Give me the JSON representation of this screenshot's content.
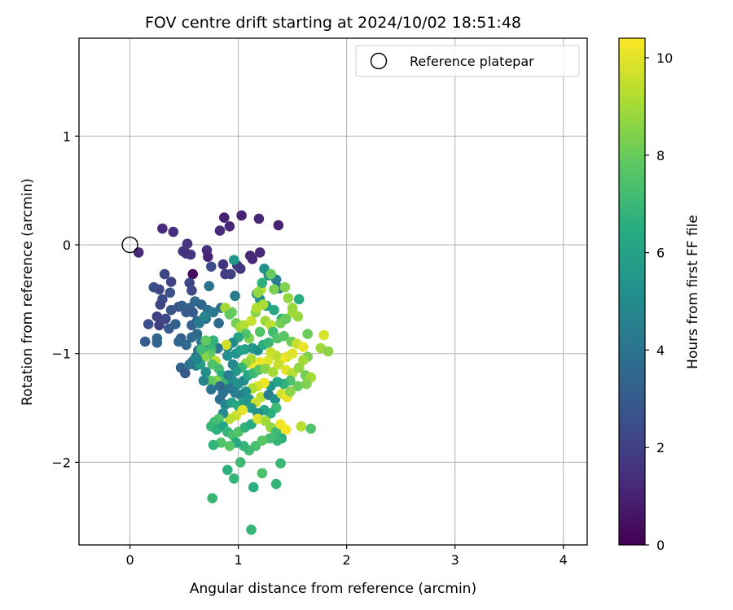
{
  "chart_data": {
    "type": "scatter",
    "title": "FOV centre drift starting at 2024/10/02 18:51:48",
    "xlabel": "Angular distance from reference (arcmin)",
    "ylabel": "Rotation from reference (arcmin)",
    "xlim": [
      -0.47,
      4.22
    ],
    "ylim": [
      -2.76,
      1.9
    ],
    "xticks": [
      0,
      1,
      2,
      3,
      4
    ],
    "yticks": [
      -2,
      -1,
      0,
      1
    ],
    "grid": true,
    "legend": {
      "position": "top-right",
      "entries": [
        "Reference platepar"
      ]
    },
    "reference_point": {
      "name": "Reference platepar",
      "x": 0,
      "y": 0
    },
    "colorbar": {
      "label": "Hours from first FF file",
      "min": 0,
      "max": 10.4,
      "ticks": [
        0,
        2,
        4,
        6,
        8,
        10
      ],
      "colormap": "viridis"
    },
    "points": [
      [
        0.08,
        -0.07,
        1.2
      ],
      [
        0.3,
        0.15,
        1.3
      ],
      [
        0.4,
        0.12,
        1.4
      ],
      [
        0.58,
        -0.27,
        0.3
      ],
      [
        0.87,
        0.25,
        1.0
      ],
      [
        1.03,
        0.27,
        1.1
      ],
      [
        1.19,
        0.24,
        1.2
      ],
      [
        1.37,
        0.18,
        1.0
      ],
      [
        0.83,
        0.13,
        1.3
      ],
      [
        0.92,
        0.17,
        1.2
      ],
      [
        0.71,
        -0.05,
        1.4
      ],
      [
        0.53,
        0.01,
        1.6
      ],
      [
        0.49,
        -0.06,
        1.7
      ],
      [
        0.52,
        -0.08,
        1.5
      ],
      [
        0.56,
        -0.09,
        1.6
      ],
      [
        0.72,
        -0.11,
        1.1
      ],
      [
        1.11,
        -0.1,
        1.1
      ],
      [
        1.13,
        -0.13,
        1.2
      ],
      [
        1.2,
        -0.07,
        1.3
      ],
      [
        0.86,
        -0.18,
        1.5
      ],
      [
        0.75,
        -0.2,
        2.5
      ],
      [
        0.88,
        -0.27,
        1.9
      ],
      [
        0.93,
        -0.27,
        2.0
      ],
      [
        1.02,
        -0.22,
        1.6
      ],
      [
        0.99,
        -0.19,
        1.7
      ],
      [
        0.96,
        -0.14,
        5.5
      ],
      [
        1.24,
        -0.22,
        5.2
      ],
      [
        1.28,
        -0.28,
        4.9
      ],
      [
        1.35,
        -0.32,
        4.5
      ],
      [
        1.38,
        -0.4,
        4.1
      ],
      [
        0.32,
        -0.27,
        2.2
      ],
      [
        0.22,
        -0.39,
        2.5
      ],
      [
        0.27,
        -0.41,
        2.3
      ],
      [
        0.38,
        -0.34,
        2.1
      ],
      [
        0.37,
        -0.44,
        2.7
      ],
      [
        0.3,
        -0.5,
        2.4
      ],
      [
        0.28,
        -0.55,
        2.2
      ],
      [
        0.45,
        -0.57,
        2.6
      ],
      [
        0.38,
        -0.6,
        2.8
      ],
      [
        0.55,
        -0.35,
        2.2
      ],
      [
        0.57,
        -0.42,
        2.3
      ],
      [
        0.6,
        -0.52,
        3.6
      ],
      [
        0.55,
        -0.58,
        3.4
      ],
      [
        0.52,
        -0.62,
        3.0
      ],
      [
        0.48,
        -0.56,
        3.1
      ],
      [
        0.66,
        -0.55,
        3.4
      ],
      [
        0.73,
        -0.38,
        3.8
      ],
      [
        0.72,
        -0.6,
        3.9
      ],
      [
        0.77,
        -0.62,
        4.2
      ],
      [
        0.7,
        -0.68,
        3.7
      ],
      [
        0.62,
        -0.7,
        3.5
      ],
      [
        0.57,
        -0.74,
        3.3
      ],
      [
        0.25,
        -0.66,
        2.0
      ],
      [
        0.27,
        -0.74,
        2.0
      ],
      [
        0.17,
        -0.73,
        2.5
      ],
      [
        0.33,
        -0.68,
        2.2
      ],
      [
        0.25,
        -0.86,
        3.5
      ],
      [
        0.25,
        -0.9,
        3.3
      ],
      [
        0.14,
        -0.89,
        3.0
      ],
      [
        0.36,
        -0.77,
        3.0
      ],
      [
        0.42,
        -0.73,
        3.2
      ],
      [
        0.47,
        -0.86,
        3.1
      ],
      [
        0.45,
        -0.89,
        3.4
      ],
      [
        0.52,
        -0.92,
        3.5
      ],
      [
        0.57,
        -0.85,
        3.6
      ],
      [
        0.62,
        -0.82,
        3.7
      ],
      [
        0.66,
        -0.89,
        4.0
      ],
      [
        0.7,
        -0.92,
        4.5
      ],
      [
        0.63,
        -0.97,
        3.9
      ],
      [
        0.61,
        -1.03,
        4.2
      ],
      [
        0.58,
        -1.07,
        4.3
      ],
      [
        0.61,
        -1.11,
        4.4
      ],
      [
        0.47,
        -1.13,
        3.3
      ],
      [
        0.51,
        -1.18,
        2.9
      ],
      [
        0.97,
        -0.47,
        4.3
      ],
      [
        1.17,
        -0.45,
        4.8
      ],
      [
        1.2,
        -0.5,
        5.1
      ],
      [
        1.26,
        -0.56,
        5.6
      ],
      [
        1.33,
        -0.6,
        6.3
      ],
      [
        1.4,
        -0.68,
        6.8
      ],
      [
        1.56,
        -0.5,
        6.5
      ],
      [
        1.55,
        -0.66,
        8.8
      ],
      [
        1.5,
        -0.62,
        9.0
      ],
      [
        1.33,
        -0.41,
        8.3
      ],
      [
        1.21,
        -0.41,
        9.3
      ],
      [
        1.18,
        -0.44,
        8.7
      ],
      [
        1.23,
        -0.55,
        9.1
      ],
      [
        1.16,
        -0.62,
        8.5
      ],
      [
        1.25,
        -0.7,
        8.9
      ],
      [
        1.3,
        -0.74,
        9.4
      ],
      [
        1.39,
        -0.72,
        8.2
      ],
      [
        1.44,
        -0.68,
        8.0
      ],
      [
        1.32,
        -0.8,
        7.2
      ],
      [
        1.2,
        -0.8,
        7.6
      ],
      [
        1.1,
        -0.86,
        8.4
      ],
      [
        0.94,
        -0.62,
        8.0
      ],
      [
        0.98,
        -0.72,
        8.2
      ],
      [
        1.02,
        -0.76,
        9.0
      ],
      [
        1.05,
        -0.74,
        9.2
      ],
      [
        1.12,
        -0.7,
        9.5
      ],
      [
        1.07,
        -0.82,
        7.5
      ],
      [
        1.0,
        -0.85,
        6.2
      ],
      [
        0.95,
        -0.9,
        5.0
      ],
      [
        0.9,
        -0.94,
        4.6
      ],
      [
        0.89,
        -0.92,
        9.7
      ],
      [
        0.81,
        -0.95,
        4.0
      ],
      [
        0.77,
        -0.88,
        6.8
      ],
      [
        0.75,
        -0.96,
        7.0
      ],
      [
        0.74,
        -1.01,
        7.8
      ],
      [
        0.69,
        -1.03,
        8.5
      ],
      [
        0.79,
        -1.07,
        9.4
      ],
      [
        0.76,
        -1.1,
        7.5
      ],
      [
        0.82,
        -1.14,
        7.2
      ],
      [
        0.85,
        -1.2,
        6.6
      ],
      [
        0.88,
        -1.25,
        7.0
      ],
      [
        0.8,
        -1.25,
        8.4
      ],
      [
        0.74,
        -1.25,
        7.8
      ],
      [
        0.9,
        -1.02,
        5.1
      ],
      [
        0.98,
        -1.0,
        5.4
      ],
      [
        1.02,
        -0.97,
        5.8
      ],
      [
        1.06,
        -0.96,
        6.0
      ],
      [
        1.13,
        -0.95,
        5.5
      ],
      [
        1.18,
        -0.97,
        5.2
      ],
      [
        1.23,
        -0.92,
        6.5
      ],
      [
        1.28,
        -0.9,
        7.0
      ],
      [
        1.36,
        -0.86,
        7.5
      ],
      [
        1.42,
        -0.84,
        7.7
      ],
      [
        1.49,
        -0.89,
        8.1
      ],
      [
        1.54,
        -0.91,
        9.6
      ],
      [
        1.6,
        -0.94,
        10.1
      ],
      [
        1.64,
        -0.82,
        8.0
      ],
      [
        1.79,
        -0.83,
        9.8
      ],
      [
        1.76,
        -0.95,
        8.9
      ],
      [
        1.83,
        -0.98,
        8.6
      ],
      [
        1.64,
        -1.03,
        8.3
      ],
      [
        1.6,
        -1.06,
        9.0
      ],
      [
        1.5,
        -1.0,
        10.0
      ],
      [
        1.45,
        -1.03,
        9.9
      ],
      [
        1.4,
        -1.05,
        10.2
      ],
      [
        1.35,
        -1.02,
        9.3
      ],
      [
        1.3,
        -0.99,
        9.6
      ],
      [
        1.27,
        -1.07,
        9.9
      ],
      [
        1.2,
        -1.08,
        10.1
      ],
      [
        1.15,
        -1.12,
        10.3
      ],
      [
        1.12,
        -1.05,
        9.1
      ],
      [
        1.07,
        -1.09,
        8.7
      ],
      [
        1.03,
        -1.13,
        6.9
      ],
      [
        0.98,
        -1.16,
        5.6
      ],
      [
        0.95,
        -1.1,
        4.8
      ],
      [
        0.91,
        -1.2,
        4.4
      ],
      [
        0.95,
        -1.25,
        5.0
      ],
      [
        1.0,
        -1.28,
        5.3
      ],
      [
        1.05,
        -1.25,
        4.9
      ],
      [
        1.09,
        -1.2,
        6.2
      ],
      [
        1.14,
        -1.18,
        7.0
      ],
      [
        1.19,
        -1.15,
        7.6
      ],
      [
        1.25,
        -1.14,
        8.5
      ],
      [
        1.32,
        -1.17,
        9.0
      ],
      [
        1.37,
        -1.1,
        9.5
      ],
      [
        1.44,
        -1.15,
        10.0
      ],
      [
        1.5,
        -1.18,
        9.3
      ],
      [
        1.56,
        -1.13,
        8.7
      ],
      [
        1.62,
        -1.2,
        8.2
      ],
      [
        1.67,
        -1.22,
        9.0
      ],
      [
        1.63,
        -1.28,
        8.4
      ],
      [
        1.55,
        -1.3,
        8.0
      ],
      [
        1.48,
        -1.25,
        7.4
      ],
      [
        1.42,
        -1.28,
        6.8
      ],
      [
        1.36,
        -1.26,
        6.2
      ],
      [
        1.3,
        -1.3,
        5.5
      ],
      [
        1.24,
        -1.27,
        10.2
      ],
      [
        1.18,
        -1.3,
        9.8
      ],
      [
        1.13,
        -1.32,
        9.2
      ],
      [
        1.07,
        -1.35,
        5.2
      ],
      [
        1.02,
        -1.38,
        4.8
      ],
      [
        0.97,
        -1.36,
        4.5
      ],
      [
        0.92,
        -1.32,
        4.2
      ],
      [
        0.86,
        -1.36,
        4.0
      ],
      [
        0.83,
        -1.42,
        3.9
      ],
      [
        0.88,
        -1.47,
        4.8
      ],
      [
        0.94,
        -1.45,
        6.0
      ],
      [
        1.0,
        -1.48,
        6.3
      ],
      [
        1.05,
        -1.45,
        5.8
      ],
      [
        1.1,
        -1.42,
        5.4
      ],
      [
        1.16,
        -1.45,
        9.7
      ],
      [
        1.21,
        -1.4,
        9.4
      ],
      [
        1.28,
        -1.38,
        4.4
      ],
      [
        1.34,
        -1.42,
        5.2
      ],
      [
        1.4,
        -1.37,
        9.7
      ],
      [
        1.45,
        -1.4,
        10.1
      ],
      [
        1.48,
        -1.35,
        8.6
      ],
      [
        1.35,
        -1.5,
        7.1
      ],
      [
        1.3,
        -1.55,
        6.6
      ],
      [
        1.24,
        -1.52,
        6.2
      ],
      [
        1.18,
        -1.55,
        5.1
      ],
      [
        1.12,
        -1.5,
        5.7
      ],
      [
        1.04,
        -1.52,
        10.0
      ],
      [
        0.98,
        -1.57,
        9.6
      ],
      [
        0.92,
        -1.6,
        9.3
      ],
      [
        0.86,
        -1.55,
        5.0
      ],
      [
        0.82,
        -1.6,
        7.5
      ],
      [
        0.78,
        -1.63,
        7.2
      ],
      [
        0.75,
        -1.67,
        7.0
      ],
      [
        0.8,
        -1.7,
        6.7
      ],
      [
        0.86,
        -1.67,
        6.2
      ],
      [
        0.9,
        -1.72,
        6.9
      ],
      [
        0.95,
        -1.75,
        7.3
      ],
      [
        1.0,
        -1.72,
        7.6
      ],
      [
        1.06,
        -1.68,
        6.8
      ],
      [
        1.12,
        -1.65,
        6.4
      ],
      [
        1.18,
        -1.6,
        9.9
      ],
      [
        1.25,
        -1.62,
        9.0
      ],
      [
        1.3,
        -1.68,
        8.7
      ],
      [
        1.35,
        -1.72,
        7.1
      ],
      [
        1.39,
        -1.65,
        10.2
      ],
      [
        1.44,
        -1.7,
        10.3
      ],
      [
        1.58,
        -1.67,
        9.3
      ],
      [
        1.67,
        -1.69,
        7.5
      ],
      [
        1.4,
        -1.78,
        6.6
      ],
      [
        1.36,
        -1.8,
        6.9
      ],
      [
        1.29,
        -1.78,
        7.2
      ],
      [
        1.22,
        -1.8,
        7.7
      ],
      [
        1.16,
        -1.85,
        7.3
      ],
      [
        1.1,
        -1.89,
        7.1
      ],
      [
        1.05,
        -1.85,
        6.9
      ],
      [
        0.98,
        -1.82,
        6.3
      ],
      [
        0.92,
        -1.85,
        7.7
      ],
      [
        0.84,
        -1.82,
        7.5
      ],
      [
        0.77,
        -1.84,
        6.8
      ],
      [
        0.9,
        -2.07,
        6.7
      ],
      [
        0.96,
        -2.15,
        6.9
      ],
      [
        1.02,
        -2.0,
        7.1
      ],
      [
        1.22,
        -2.1,
        7.4
      ],
      [
        1.39,
        -2.01,
        7.0
      ],
      [
        1.35,
        -2.2,
        6.9
      ],
      [
        1.14,
        -2.23,
        6.6
      ],
      [
        0.76,
        -2.33,
        7.0
      ],
      [
        1.12,
        -2.62,
        6.9
      ],
      [
        0.83,
        -1.3,
        3.6
      ],
      [
        0.75,
        -1.33,
        4.1
      ],
      [
        0.68,
        -1.25,
        4.6
      ],
      [
        0.7,
        -1.17,
        5.2
      ],
      [
        0.65,
        -1.1,
        5.8
      ],
      [
        0.62,
        -1.05,
        4.8
      ],
      [
        0.66,
        -0.96,
        7.2
      ],
      [
        0.7,
        -0.88,
        7.9
      ],
      [
        0.55,
        -1.1,
        4.1
      ],
      [
        0.64,
        -0.72,
        4.3
      ],
      [
        0.69,
        -0.66,
        4.6
      ],
      [
        0.58,
        -0.62,
        3.0
      ],
      [
        0.82,
        -0.72,
        3.6
      ],
      [
        0.84,
        -0.58,
        4.0
      ],
      [
        0.88,
        -0.58,
        9.0
      ],
      [
        0.92,
        -0.64,
        7.9
      ],
      [
        1.17,
        -0.58,
        9.2
      ],
      [
        1.22,
        -0.35,
        6.7
      ],
      [
        1.3,
        -0.27,
        7.9
      ],
      [
        1.43,
        -0.39,
        8.4
      ],
      [
        1.46,
        -0.49,
        8.7
      ],
      [
        1.5,
        -0.58,
        8.8
      ]
    ]
  }
}
